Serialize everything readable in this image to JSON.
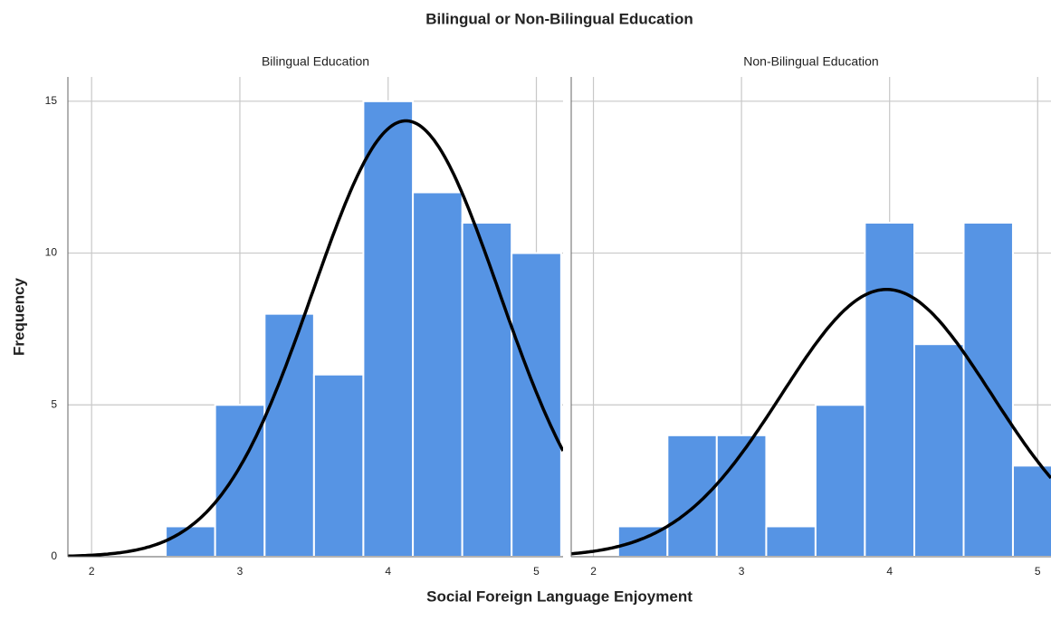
{
  "title": "Bilingual or Non-Bilingual Education",
  "x_label": "Social Foreign Language Enjoyment",
  "y_label": "Frequency",
  "chart_data": [
    {
      "type": "histogram",
      "subtitle": "Bilingual Education",
      "color": "#5694e4",
      "bins": [
        2.5,
        2.833,
        3.167,
        3.5,
        3.833,
        4.167,
        4.5,
        4.833,
        5.167
      ],
      "values": [
        1,
        5,
        8,
        6,
        15,
        12,
        11,
        10
      ],
      "curve": {
        "mean": 4.12,
        "sd": 0.63
      },
      "xlim": [
        1.84,
        5.18
      ],
      "xticks": [
        2,
        3,
        4,
        5
      ],
      "ylim": [
        0,
        15.8
      ],
      "yticks": [
        0,
        5,
        10,
        15
      ],
      "grid": true
    },
    {
      "type": "histogram",
      "subtitle": "Non-Bilingual Education",
      "color": "#5694e4",
      "bins": [
        2.167,
        2.5,
        2.833,
        3.167,
        3.5,
        3.833,
        4.167,
        4.5,
        4.833,
        5.167
      ],
      "values": [
        1,
        4,
        4,
        1,
        5,
        11,
        7,
        11,
        3
      ],
      "curve": {
        "mean": 3.98,
        "sd": 0.71
      },
      "xlim": [
        1.85,
        5.09
      ],
      "xticks": [
        2,
        3,
        4,
        5
      ],
      "ylim": [
        0,
        15.8
      ],
      "yticks": [
        0,
        5,
        10,
        15
      ],
      "grid": true
    }
  ]
}
